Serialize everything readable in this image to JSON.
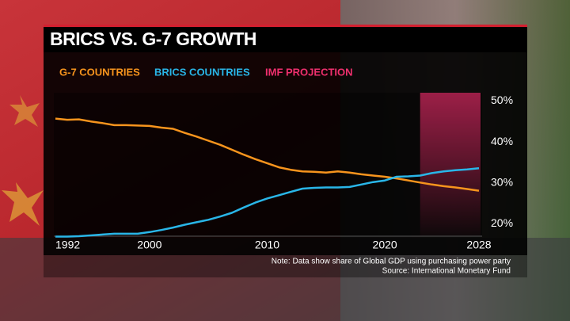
{
  "chart_data": {
    "type": "line",
    "title": "BRICS VS. G-7 GROWTH",
    "x": [
      1992,
      1993,
      1994,
      1995,
      1996,
      1997,
      1998,
      1999,
      2000,
      2001,
      2002,
      2003,
      2004,
      2005,
      2006,
      2007,
      2008,
      2009,
      2010,
      2011,
      2012,
      2013,
      2014,
      2015,
      2016,
      2017,
      2018,
      2019,
      2020,
      2021,
      2022,
      2023,
      2024,
      2025,
      2026,
      2027,
      2028
    ],
    "series": [
      {
        "name": "G-7 COUNTRIES",
        "color": "#f7941d",
        "values": [
          45.7,
          45.4,
          45.5,
          45.0,
          44.6,
          44.1,
          44.1,
          44.0,
          43.9,
          43.5,
          43.2,
          42.2,
          41.3,
          40.3,
          39.3,
          38.1,
          36.9,
          35.8,
          34.8,
          33.8,
          33.2,
          32.8,
          32.7,
          32.5,
          32.8,
          32.5,
          32.1,
          31.8,
          31.5,
          31.1,
          30.6,
          30.1,
          29.6,
          29.2,
          28.9,
          28.5,
          28.1
        ]
      },
      {
        "name": "BRICS COUNTRIES",
        "color": "#29b6e8",
        "values": [
          16.9,
          16.9,
          17.0,
          17.2,
          17.4,
          17.6,
          17.6,
          17.6,
          18.0,
          18.5,
          19.1,
          19.8,
          20.4,
          21.0,
          21.8,
          22.7,
          24.0,
          25.2,
          26.2,
          27.0,
          27.8,
          28.6,
          28.8,
          28.9,
          28.9,
          29.0,
          29.6,
          30.2,
          30.6,
          31.5,
          31.6,
          31.8,
          32.4,
          32.8,
          33.1,
          33.3,
          33.6
        ]
      }
    ],
    "projection": {
      "name": "IMF PROJECTION",
      "color": "#f0306e",
      "range": [
        2023,
        2028
      ]
    },
    "xlim": [
      1992,
      2028
    ],
    "xticks": [
      1992,
      2000,
      2010,
      2020,
      2028
    ],
    "ylim": [
      17,
      52
    ],
    "yticks": [
      {
        "value": 20,
        "label": "20%"
      },
      {
        "value": 30,
        "label": "30%"
      },
      {
        "value": 40,
        "label": "40%"
      },
      {
        "value": 50,
        "label": "50%"
      }
    ],
    "grid": false,
    "note": "Note: Data show share of Global GDP using purchasing power party",
    "source": "Source: International Monetary Fund"
  }
}
